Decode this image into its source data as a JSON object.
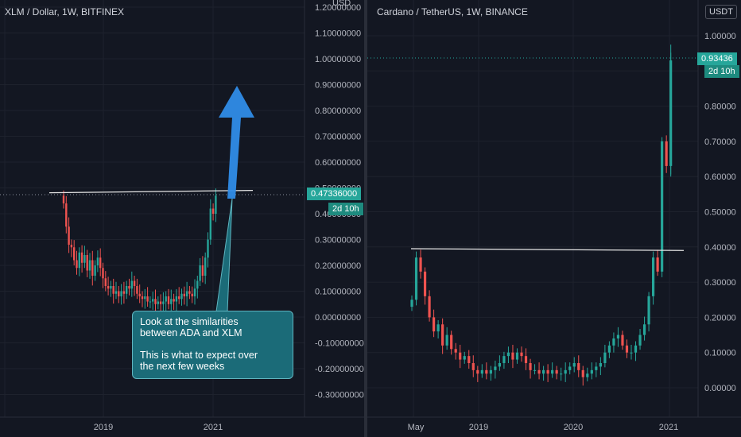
{
  "left_chart": {
    "title": "XLM / Dollar, 1W, BITFINEX",
    "currency": "USD",
    "price_label": "0.47336000",
    "countdown": "2d 10h",
    "y_ticks": [
      "1.20000000",
      "1.10000000",
      "1.00000000",
      "0.90000000",
      "0.80000000",
      "0.70000000",
      "0.60000000",
      "0.50000000",
      "0.40000000",
      "0.30000000",
      "0.20000000",
      "0.10000000",
      "0.00000000",
      "-0.10000000",
      "-0.20000000",
      "-0.30000000"
    ],
    "x_ticks": [
      "2019",
      "2021"
    ],
    "note_lines_1": [
      "Look at the similarities",
      "between ADA and XLM"
    ],
    "note_lines_2": [
      "This is what to expect over",
      "the next few weeks"
    ]
  },
  "right_chart": {
    "title": "Cardano / TetherUS, 1W, BINANCE",
    "currency": "USDT",
    "price_label": "0.93436",
    "countdown": "2d 10h",
    "y_ticks": [
      "1.00000",
      "0.90000",
      "0.80000",
      "0.70000",
      "0.60000",
      "0.50000",
      "0.40000",
      "0.30000",
      "0.20000",
      "0.10000",
      "0.00000"
    ],
    "x_ticks": [
      "May",
      "2019",
      "2020",
      "2021"
    ]
  },
  "colors": {
    "background": "#131722",
    "up": "#26a69a",
    "down": "#ef5350",
    "arrow": "#2f8ce8",
    "note": "#1b6b78"
  },
  "chart_data": [
    {
      "type": "candlestick",
      "title": "XLM / Dollar, 1W, BITFINEX",
      "ylabel": "USD",
      "ylim": [
        -0.35,
        1.2
      ],
      "x_ticks": [
        "2019",
        "2021"
      ],
      "resistance_level": 0.475,
      "last_price": 0.47336,
      "series": [
        {
          "x": 0,
          "close": 0.44
        },
        {
          "x": 1,
          "close": 0.35
        },
        {
          "x": 2,
          "close": 0.28
        },
        {
          "x": 3,
          "close": 0.27
        },
        {
          "x": 4,
          "close": 0.22
        },
        {
          "x": 5,
          "close": 0.19
        },
        {
          "x": 6,
          "close": 0.25
        },
        {
          "x": 7,
          "close": 0.21
        },
        {
          "x": 8,
          "close": 0.24
        },
        {
          "x": 9,
          "close": 0.18
        },
        {
          "x": 10,
          "close": 0.22
        },
        {
          "x": 11,
          "close": 0.16
        },
        {
          "x": 12,
          "close": 0.2
        },
        {
          "x": 13,
          "close": 0.23
        },
        {
          "x": 14,
          "close": 0.19
        },
        {
          "x": 15,
          "close": 0.15
        },
        {
          "x": 16,
          "close": 0.12
        },
        {
          "x": 17,
          "close": 0.11
        },
        {
          "x": 18,
          "close": 0.12
        },
        {
          "x": 19,
          "close": 0.09
        },
        {
          "x": 20,
          "close": 0.1
        },
        {
          "x": 21,
          "close": 0.08
        },
        {
          "x": 22,
          "close": 0.1
        },
        {
          "x": 23,
          "close": 0.09
        },
        {
          "x": 24,
          "close": 0.12
        },
        {
          "x": 25,
          "close": 0.11
        },
        {
          "x": 26,
          "close": 0.14
        },
        {
          "x": 27,
          "close": 0.12
        },
        {
          "x": 28,
          "close": 0.09
        },
        {
          "x": 29,
          "close": 0.08
        },
        {
          "x": 30,
          "close": 0.07
        },
        {
          "x": 31,
          "close": 0.08
        },
        {
          "x": 32,
          "close": 0.06
        },
        {
          "x": 33,
          "close": 0.06
        },
        {
          "x": 34,
          "close": 0.07
        },
        {
          "x": 35,
          "close": 0.05
        },
        {
          "x": 36,
          "close": 0.06
        },
        {
          "x": 37,
          "close": 0.05
        },
        {
          "x": 38,
          "close": 0.06
        },
        {
          "x": 39,
          "close": 0.08
        },
        {
          "x": 40,
          "close": 0.05
        },
        {
          "x": 41,
          "close": 0.07
        },
        {
          "x": 42,
          "close": 0.06
        },
        {
          "x": 43,
          "close": 0.08
        },
        {
          "x": 44,
          "close": 0.07
        },
        {
          "x": 45,
          "close": 0.09
        },
        {
          "x": 46,
          "close": 0.08
        },
        {
          "x": 47,
          "close": 0.1
        },
        {
          "x": 48,
          "close": 0.09
        },
        {
          "x": 49,
          "close": 0.08
        },
        {
          "x": 50,
          "close": 0.11
        },
        {
          "x": 51,
          "close": 0.14
        },
        {
          "x": 52,
          "close": 0.2
        },
        {
          "x": 53,
          "close": 0.16
        },
        {
          "x": 54,
          "close": 0.23
        },
        {
          "x": 55,
          "close": 0.3
        },
        {
          "x": 56,
          "close": 0.42
        },
        {
          "x": 57,
          "close": 0.4
        },
        {
          "x": 58,
          "close": 0.47
        }
      ]
    },
    {
      "type": "candlestick",
      "title": "Cardano / TetherUS, 1W, BINANCE",
      "ylabel": "USDT",
      "ylim": [
        -0.02,
        1.04
      ],
      "x_ticks": [
        "May",
        "2019",
        "2020",
        "2021"
      ],
      "resistance_level": 0.39,
      "last_price": 0.93436,
      "series": [
        {
          "x": 0,
          "close": 0.25
        },
        {
          "x": 1,
          "close": 0.37
        },
        {
          "x": 2,
          "close": 0.33
        },
        {
          "x": 3,
          "close": 0.26
        },
        {
          "x": 4,
          "close": 0.2
        },
        {
          "x": 5,
          "close": 0.16
        },
        {
          "x": 6,
          "close": 0.18
        },
        {
          "x": 7,
          "close": 0.12
        },
        {
          "x": 8,
          "close": 0.15
        },
        {
          "x": 9,
          "close": 0.11
        },
        {
          "x": 10,
          "close": 0.1
        },
        {
          "x": 11,
          "close": 0.08
        },
        {
          "x": 12,
          "close": 0.09
        },
        {
          "x": 13,
          "close": 0.07
        },
        {
          "x": 14,
          "close": 0.05
        },
        {
          "x": 15,
          "close": 0.04
        },
        {
          "x": 16,
          "close": 0.05
        },
        {
          "x": 17,
          "close": 0.04
        },
        {
          "x": 18,
          "close": 0.05
        },
        {
          "x": 19,
          "close": 0.06
        },
        {
          "x": 20,
          "close": 0.07
        },
        {
          "x": 21,
          "close": 0.09
        },
        {
          "x": 22,
          "close": 0.1
        },
        {
          "x": 23,
          "close": 0.08
        },
        {
          "x": 24,
          "close": 0.1
        },
        {
          "x": 25,
          "close": 0.09
        },
        {
          "x": 26,
          "close": 0.07
        },
        {
          "x": 27,
          "close": 0.05
        },
        {
          "x": 28,
          "close": 0.05
        },
        {
          "x": 29,
          "close": 0.04
        },
        {
          "x": 30,
          "close": 0.05
        },
        {
          "x": 31,
          "close": 0.04
        },
        {
          "x": 32,
          "close": 0.05
        },
        {
          "x": 33,
          "close": 0.04
        },
        {
          "x": 34,
          "close": 0.04
        },
        {
          "x": 35,
          "close": 0.05
        },
        {
          "x": 36,
          "close": 0.06
        },
        {
          "x": 37,
          "close": 0.07
        },
        {
          "x": 38,
          "close": 0.05
        },
        {
          "x": 39,
          "close": 0.03
        },
        {
          "x": 40,
          "close": 0.04
        },
        {
          "x": 41,
          "close": 0.05
        },
        {
          "x": 42,
          "close": 0.06
        },
        {
          "x": 43,
          "close": 0.07
        },
        {
          "x": 44,
          "close": 0.1
        },
        {
          "x": 45,
          "close": 0.12
        },
        {
          "x": 46,
          "close": 0.14
        },
        {
          "x": 47,
          "close": 0.15
        },
        {
          "x": 48,
          "close": 0.12
        },
        {
          "x": 49,
          "close": 0.1
        },
        {
          "x": 50,
          "close": 0.1
        },
        {
          "x": 51,
          "close": 0.12
        },
        {
          "x": 52,
          "close": 0.15
        },
        {
          "x": 53,
          "close": 0.18
        },
        {
          "x": 54,
          "close": 0.26
        },
        {
          "x": 55,
          "close": 0.37
        },
        {
          "x": 56,
          "close": 0.33
        },
        {
          "x": 57,
          "close": 0.7
        },
        {
          "x": 58,
          "close": 0.63
        },
        {
          "x": 59,
          "close": 0.93
        }
      ]
    }
  ]
}
